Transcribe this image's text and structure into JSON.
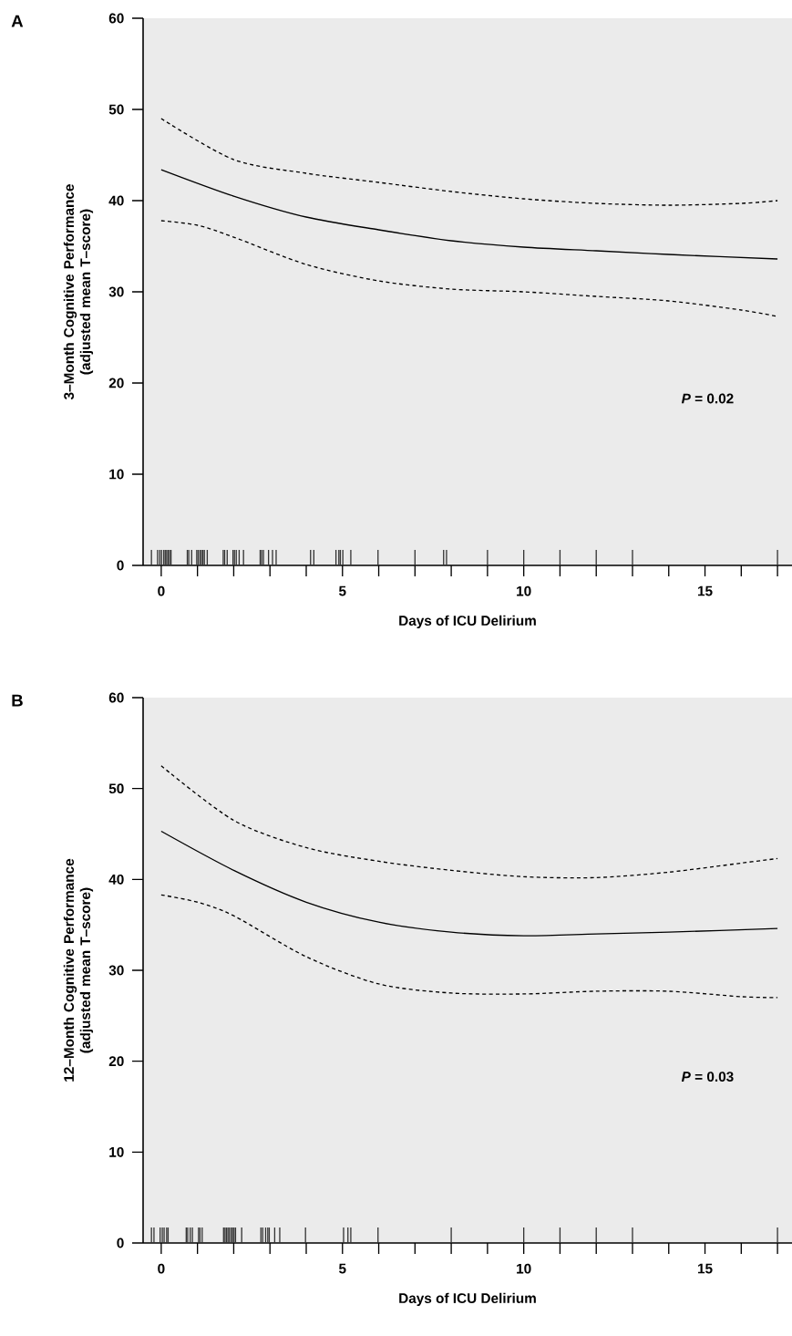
{
  "chart_data": [
    {
      "type": "line",
      "title": "A",
      "xlabel": "Days of ICU Delirium",
      "ylabel": "3–Month Cognitive Performance (adjusted mean T–score)",
      "xlim": [
        -0.5,
        17.4
      ],
      "ylim": [
        0,
        60
      ],
      "xticks": [
        0,
        {
          "value": 1,
          "label": null
        },
        {
          "value": 2,
          "label": null
        },
        {
          "value": 3,
          "label": null
        },
        {
          "value": 4,
          "label": null
        },
        5,
        {
          "value": 6,
          "label": null
        },
        {
          "value": 7,
          "label": null
        },
        {
          "value": 8,
          "label": null
        },
        {
          "value": 9,
          "label": null
        },
        10,
        {
          "value": 11,
          "label": null
        },
        {
          "value": 12,
          "label": null
        },
        {
          "value": 13,
          "label": null
        },
        {
          "value": 14,
          "label": null
        },
        15,
        {
          "value": 16,
          "label": null
        },
        {
          "value": 17,
          "label": null
        }
      ],
      "yticks": [
        0,
        10,
        20,
        30,
        40,
        50,
        60
      ],
      "grid": false,
      "annotations": [
        "*P* = 0.02"
      ],
      "series": [
        {
          "line_style": "solid",
          "color": "#000000",
          "x": [
            0,
            2,
            4,
            6,
            8,
            10,
            12,
            14,
            17
          ],
          "values": [
            43.4,
            40.5,
            38.2,
            36.8,
            35.6,
            34.9,
            34.5,
            34.1,
            33.6
          ]
        },
        {
          "line_style": "dashed",
          "color": "#000000",
          "x": [
            0,
            2,
            4,
            6,
            8,
            10,
            12,
            14,
            16,
            17
          ],
          "values": [
            49,
            44.5,
            43,
            42,
            41,
            40.2,
            39.7,
            39.5,
            39.7,
            40
          ]
        },
        {
          "line_style": "dashed",
          "color": "#000000",
          "x": [
            0,
            1,
            2,
            4,
            6,
            8,
            10,
            12,
            14,
            16,
            17
          ],
          "values": [
            37.8,
            37.3,
            36,
            33,
            31.2,
            30.3,
            30,
            29.5,
            29,
            28,
            27.3
          ]
        },
        {
          "type": "bar",
          "color": "#333333",
          "x": [
            -0.27,
            -0.1,
            -0.04,
            0.01,
            0.07,
            0.11,
            0.15,
            0.19,
            0.23,
            0.27,
            0.72,
            0.76,
            0.84,
            0.98,
            1.02,
            1.07,
            1.11,
            1.15,
            1.19,
            1.27,
            1.71,
            1.75,
            1.82,
            1.98,
            2.02,
            2.07,
            2.15,
            2.27,
            2.73,
            2.77,
            2.82,
            2.96,
            3.07,
            3.17,
            4.12,
            4.21,
            4.82,
            4.9,
            4.94,
            5.01,
            5.23,
            5.98,
            7,
            7.79,
            7.87,
            9,
            10,
            11,
            12,
            13,
            17
          ],
          "values": [
            1.7,
            1.7,
            1.7,
            1.7,
            1.7,
            1.7,
            1.7,
            1.7,
            1.7,
            1.7,
            1.7,
            1.7,
            1.7,
            1.7,
            1.7,
            1.7,
            1.7,
            1.7,
            1.7,
            1.7,
            1.7,
            1.7,
            1.7,
            1.7,
            1.7,
            1.7,
            1.7,
            1.7,
            1.7,
            1.7,
            1.7,
            1.7,
            1.7,
            1.7,
            1.7,
            1.7,
            1.7,
            1.7,
            1.7,
            1.7,
            1.7,
            1.7,
            1.7,
            1.7,
            1.7,
            1.7,
            1.7,
            1.7,
            1.7,
            1.7,
            1.7
          ]
        }
      ]
    },
    {
      "type": "line",
      "title": "B",
      "xlabel": "Days of ICU Delirium",
      "ylabel": "12–Month Cognitive Performance (adjusted mean T–score)",
      "xlim": [
        -0.5,
        17.4
      ],
      "ylim": [
        0,
        60
      ],
      "xticks": [
        0,
        {
          "value": 1,
          "label": null
        },
        {
          "value": 2,
          "label": null
        },
        {
          "value": 3,
          "label": null
        },
        {
          "value": 4,
          "label": null
        },
        5,
        {
          "value": 6,
          "label": null
        },
        {
          "value": 7,
          "label": null
        },
        {
          "value": 8,
          "label": null
        },
        {
          "value": 9,
          "label": null
        },
        10,
        {
          "value": 11,
          "label": null
        },
        {
          "value": 12,
          "label": null
        },
        {
          "value": 13,
          "label": null
        },
        {
          "value": 14,
          "label": null
        },
        15,
        {
          "value": 16,
          "label": null
        },
        {
          "value": 17,
          "label": null
        }
      ],
      "yticks": [
        0,
        10,
        20,
        30,
        40,
        50,
        60
      ],
      "grid": false,
      "annotations": [
        "*P* = 0.03"
      ],
      "series": [
        {
          "line_style": "solid",
          "color": "#000000",
          "x": [
            0,
            2,
            4,
            6,
            8,
            10,
            12,
            14,
            17
          ],
          "values": [
            45.3,
            41,
            37.5,
            35.3,
            34.2,
            33.8,
            34,
            34.2,
            34.6
          ]
        },
        {
          "line_style": "dashed",
          "color": "#000000",
          "x": [
            0,
            2,
            4,
            6,
            8,
            10,
            12,
            14,
            16,
            17
          ],
          "values": [
            52.5,
            46.5,
            43.5,
            42,
            41,
            40.3,
            40.2,
            40.8,
            41.8,
            42.3
          ]
        },
        {
          "line_style": "dashed",
          "color": "#000000",
          "x": [
            0,
            1,
            2,
            4,
            6,
            8,
            10,
            12,
            14,
            16,
            17
          ],
          "values": [
            38.3,
            37.5,
            36,
            31.5,
            28.5,
            27.5,
            27.4,
            27.7,
            27.7,
            27.1,
            27
          ]
        },
        {
          "type": "bar",
          "color": "#333333",
          "x": [
            -0.27,
            -0.2,
            -0.03,
            0.03,
            0.08,
            0.15,
            0.19,
            0.69,
            0.73,
            0.8,
            0.86,
            1.03,
            1.07,
            1.13,
            1.72,
            1.76,
            1.8,
            1.84,
            1.88,
            1.93,
            1.97,
            2.01,
            2.05,
            2.22,
            2.75,
            2.8,
            2.88,
            2.94,
            2.98,
            3.13,
            3.27,
            3.98,
            5.03,
            5.15,
            5.23,
            5.98,
            8,
            10,
            11,
            12,
            13,
            17
          ],
          "values": [
            1.7,
            1.7,
            1.7,
            1.7,
            1.7,
            1.7,
            1.7,
            1.7,
            1.7,
            1.7,
            1.7,
            1.7,
            1.7,
            1.7,
            1.7,
            1.7,
            1.7,
            1.7,
            1.7,
            1.7,
            1.7,
            1.7,
            1.7,
            1.7,
            1.7,
            1.7,
            1.7,
            1.7,
            1.7,
            1.7,
            1.7,
            1.7,
            1.7,
            1.7,
            1.7,
            1.7,
            1.7,
            1.7,
            1.7,
            1.7,
            1.7,
            1.7
          ]
        }
      ]
    }
  ]
}
